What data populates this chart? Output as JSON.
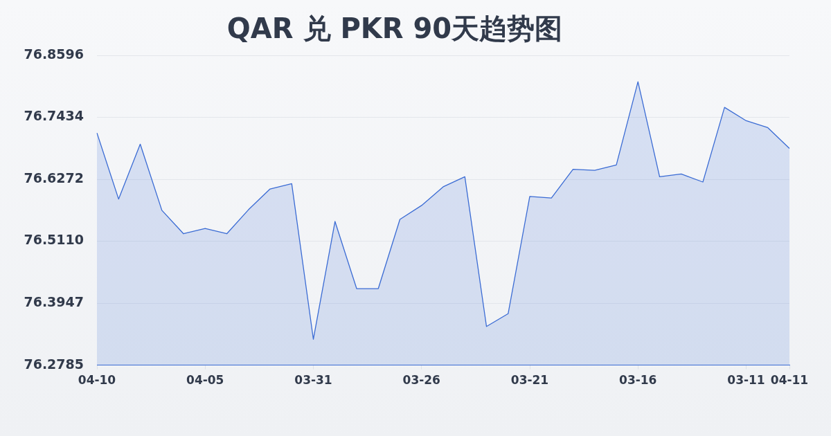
{
  "chart_data": {
    "type": "area",
    "title": "QAR 兑 PKR 90天趋势图",
    "categories": [
      "04-10",
      null,
      null,
      null,
      null,
      "04-05",
      null,
      null,
      null,
      null,
      "03-31",
      null,
      null,
      null,
      null,
      "03-26",
      null,
      null,
      null,
      null,
      "03-21",
      null,
      null,
      null,
      null,
      "03-16",
      null,
      null,
      null,
      null,
      "03-11",
      null,
      "04-11"
    ],
    "series": [
      {
        "color": "#3a6bd4",
        "values": [
          76.714,
          76.59,
          76.693,
          76.569,
          76.525,
          76.535,
          76.525,
          76.57,
          76.609,
          76.619,
          76.327,
          76.548,
          76.422,
          76.422,
          76.552,
          76.578,
          76.613,
          76.632,
          76.351,
          76.375,
          76.595,
          76.592,
          76.646,
          76.644,
          76.654,
          76.81,
          76.632,
          76.637,
          76.622,
          76.762,
          76.737,
          76.724,
          76.685
        ]
      }
    ],
    "ylim": [
      76.2785,
      76.8596
    ],
    "yticks": [
      76.2785,
      76.3947,
      {
        "value": 76.511,
        "label": "76.5110"
      },
      76.6272,
      76.7434,
      76.8596
    ],
    "grid": "y",
    "marker": "none"
  }
}
